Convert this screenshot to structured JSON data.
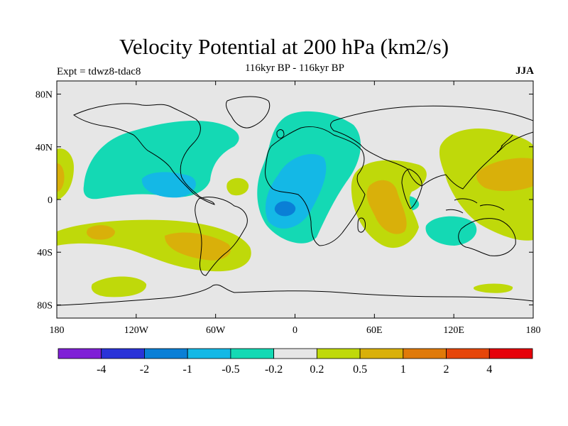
{
  "title": "Velocity Potential at 200 hPa (km2/s)",
  "subtitle": "116kyr BP - 116kyr BP",
  "experiment": "Expt = tdwz8-tdac8",
  "season": "JJA",
  "map": {
    "lat_ticks": [
      {
        "value": 80,
        "label": "80N"
      },
      {
        "value": 40,
        "label": "40N"
      },
      {
        "value": 0,
        "label": "0"
      },
      {
        "value": -40,
        "label": "40S"
      },
      {
        "value": -80,
        "label": "80S"
      }
    ],
    "lon_ticks": [
      {
        "value": -180,
        "label": "180"
      },
      {
        "value": -120,
        "label": "120W"
      },
      {
        "value": -60,
        "label": "60W"
      },
      {
        "value": 0,
        "label": "0"
      },
      {
        "value": 60,
        "label": "60E"
      },
      {
        "value": 120,
        "label": "120E"
      },
      {
        "value": 180,
        "label": "180"
      }
    ],
    "background_color": "#e6e6e6"
  },
  "colorbar": {
    "colors": [
      "#7f1fd6",
      "#2a33d8",
      "#0a7fd6",
      "#14b8e6",
      "#14d9b4",
      "#e6e6e6",
      "#bfd90a",
      "#d9b00a",
      "#e07a0a",
      "#e6460a",
      "#e6000a"
    ],
    "labels": [
      "-4",
      "-2",
      "-1",
      "-0.5",
      "-0.2",
      "0.2",
      "0.5",
      "1",
      "2",
      "4"
    ]
  }
}
